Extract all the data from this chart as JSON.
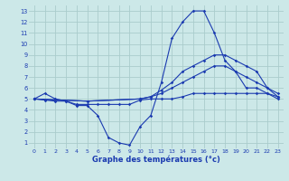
{
  "title": "Graphe des températures (°c)",
  "bg_color": "#cce8e8",
  "grid_color": "#aacccc",
  "line_color": "#1a3ab0",
  "xlim": [
    -0.5,
    23.5
  ],
  "ylim": [
    0.5,
    13.5
  ],
  "xticks": [
    0,
    1,
    2,
    3,
    4,
    5,
    6,
    7,
    8,
    9,
    10,
    11,
    12,
    13,
    14,
    15,
    16,
    17,
    18,
    19,
    20,
    21,
    22,
    23
  ],
  "yticks": [
    1,
    2,
    3,
    4,
    5,
    6,
    7,
    8,
    9,
    10,
    11,
    12,
    13
  ],
  "line1": {
    "x": [
      0,
      1,
      2,
      3,
      4,
      5,
      6,
      7,
      8,
      9,
      10,
      11,
      12,
      13,
      14,
      15,
      16,
      17,
      18,
      19,
      20,
      21,
      22,
      23
    ],
    "y": [
      5,
      5.5,
      5,
      4.8,
      4.4,
      4.4,
      3.5,
      1.5,
      1,
      0.8,
      2.5,
      3.5,
      6.5,
      10.5,
      12,
      13,
      13,
      11,
      8.5,
      7.5,
      6,
      6,
      5.5,
      5
    ]
  },
  "line2": {
    "x": [
      0,
      1,
      2,
      3,
      4,
      5,
      6,
      7,
      8,
      9,
      10,
      11,
      12,
      13,
      14,
      15,
      16,
      17,
      18,
      19,
      20,
      21,
      22,
      23
    ],
    "y": [
      5,
      4.9,
      4.8,
      4.8,
      4.5,
      4.5,
      4.5,
      4.5,
      4.5,
      4.5,
      4.9,
      5,
      5,
      5,
      5.2,
      5.5,
      5.5,
      5.5,
      5.5,
      5.5,
      5.5,
      5.5,
      5.5,
      5.2
    ]
  },
  "line3": {
    "x": [
      0,
      5,
      10,
      11,
      12,
      13,
      14,
      15,
      16,
      17,
      18,
      19,
      20,
      21,
      22,
      23
    ],
    "y": [
      5,
      4.8,
      5,
      5.2,
      5.5,
      6,
      6.5,
      7,
      7.5,
      8,
      8,
      7.5,
      7,
      6.5,
      6,
      5.5
    ]
  },
  "line4": {
    "x": [
      0,
      5,
      10,
      11,
      12,
      13,
      14,
      15,
      16,
      17,
      18,
      19,
      20,
      21,
      22,
      23
    ],
    "y": [
      5,
      4.8,
      5,
      5.2,
      5.8,
      6.5,
      7.5,
      8,
      8.5,
      9,
      9,
      8.5,
      8,
      7.5,
      6,
      5.2
    ]
  }
}
